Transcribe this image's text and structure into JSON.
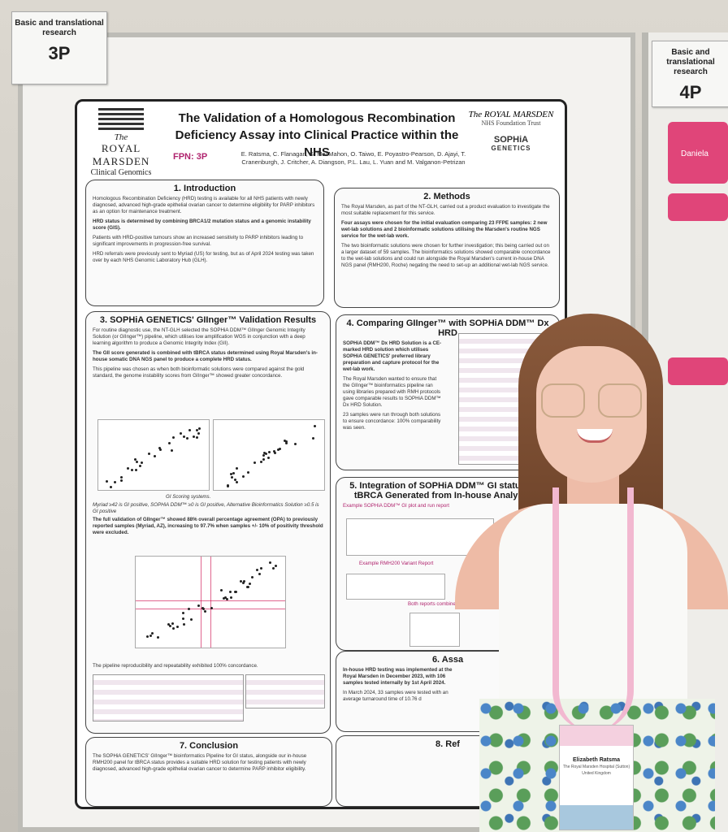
{
  "tags": {
    "left": {
      "label": "Basic and translational research",
      "code": "3P"
    },
    "right": {
      "label": "Basic and translational research",
      "code": "4P"
    }
  },
  "poster": {
    "title": "The Validation of a Homologous Recombination Deficiency Assay into Clinical Practice within the NHS",
    "fpn": "FPN: 3P",
    "authors": "E. Ratsma, C. Flanagan, S. MacMahon, O. Taiwo, E. Poyastro-Pearson, D. Ajayi, T. Cranenburgh, J. Critcher, A. Diangson, P.L. Lau, L. Yuan and M. Valganon-Petrizan",
    "logo_left": {
      "l1": "The",
      "l2": "ROYAL MARSDEN",
      "l3": "Clinical Genomics"
    },
    "logo_right": {
      "a": "The ROYAL MARSDEN",
      "b": "NHS Foundation Trust",
      "sophia": "SOPHiA",
      "genetics": "GENETICS"
    },
    "sections": {
      "intro": {
        "heading": "1. Introduction",
        "paragraphs": [
          "Homologous Recombination Deficiency (HRD) testing is available for all NHS patients with newly diagnosed, advanced high-grade epithelial ovarian cancer to determine eligibility for PARP inhibitors as an option for maintenance treatment.",
          "HRD status is determined by combining BRCA1/2 mutation status and a genomic instability score (GIS).",
          "Patients with HRD-positive tumours show an increased sensitivity to PARP inhibitors leading to significant improvements in progression-free survival.",
          "HRD referrals were previously sent to Myriad (US) for testing, but as of April 2024 testing was taken over by each NHS Genomic Laboratory Hub (GLH)."
        ]
      },
      "methods": {
        "heading": "2. Methods",
        "paragraphs": [
          "The Royal Marsden, as part of the NT-GLH, carried out a product evaluation to investigate the most suitable replacement for this service.",
          "Four assays were chosen for the initial evaluation comparing 23 FFPE samples: 2 new wet-lab solutions and 2 bioinformatic solutions utilising the Marsden's routine NGS service for the wet-lab work.",
          "The two bioinformatic solutions were chosen for further investigation; this being carried out on a larger dataset of 59 samples. The bioinformatics solutions showed comparable concordance to the wet-lab solutions and could run alongside the Royal Marsden's current in-house DNA NGS panel (RMH200, Roche) negating the need to set-up an additional wet-lab NGS service."
        ]
      },
      "validation": {
        "heading": "3. SOPHiA GENETICS' GIInger™ Validation Results",
        "paragraphs": [
          "For routine diagnostic use, the NT-GLH selected the SOPHiA DDM™ GIInger Genomic Integrity Solution (or GIInger™) pipeline, which utilises low amplification WGS in conjunction with a deep learning algorithm to produce a Genomic Integrity Index (GII).",
          "The GII score generated is combined with tBRCA status determined using Royal Marsden's in-house somatic DNA NGS panel to produce a complete HRD status.",
          "This pipeline was chosen as when both bioinformatic solutions were compared against the gold standard, the genome instability scores from GIInger™ showed greater concordance.",
          "GI Scoring systems.",
          "Myriad ≥42 is GI positive, SOPHiA DDM™ ≥0 is GI positive, Alternative Bioinformatics Solution ≥0.5 is GI positive",
          "The full validation of GIInger™ showed 88% overall percentage agreement (OPA) to previously reported samples (Myriad, AZ), increasing to 97.7% when samples +/- 10% of positivity threshold were excluded.",
          "The pipeline reproducibility and repeatability exhibited 100% concordance."
        ]
      },
      "comparing": {
        "heading": "4. Comparing GIInger™ with SOPHiA DDM™ Dx HRD",
        "paragraphs": [
          "SOPHiA DDM™ Dx HRD Solution is a CE-marked HRD solution which utilises SOPHiA GENETICS' preferred library preparation and capture protocol for the wet-lab work.",
          "The Royal Marsden wanted to ensure that the GIInger™ bioinformatics pipeline ran using libraries prepared with RMH protocols gave comparable results to SOPHiA DDM™ Dx HRD Solution.",
          "23 samples were run through both solutions to ensure concordance: 100% comparability was seen."
        ]
      },
      "integration": {
        "heading": "5. Integration of SOPHiA DDM™ GI status with tBRCA Generated from In-house Analysis Pi",
        "labels": [
          "Example SOPHiA DDM™ GI plot and run report",
          "Example RMH200 Variant Report",
          "Both reports combine"
        ]
      },
      "assay": {
        "heading": "6. Assa",
        "paragraphs": [
          "In-house HRD testing was implemented at the Royal Marsden in December 2023, with 106 samples tested internally by 1st April 2024.",
          "In March 2024, 33 samples were tested with an average turnaround time of 10.76 d"
        ]
      },
      "conclusion": {
        "heading": "7. Conclusion",
        "paragraphs": [
          "The SOPHiA GENETICS' GIInger™ bioinformatics Pipeline for GI status, alongside our in-house RMH200 panel for tBRCA status provides a suitable HRD solution for testing patients with newly diagnosed, advanced high-grade epithelial ovarian cancer to determine PARP inhibitor eligibility."
        ]
      },
      "refs": {
        "heading": "8. Ref"
      }
    }
  },
  "badge": {
    "name": "Elizabeth Ratsma",
    "org": "The Royal Marsden Hospital (Sutton)",
    "country": "United Kingdom"
  },
  "neighbor": {
    "name": "Daniela"
  },
  "colors": {
    "accent": "#b0246e",
    "pink": "#e04579"
  }
}
